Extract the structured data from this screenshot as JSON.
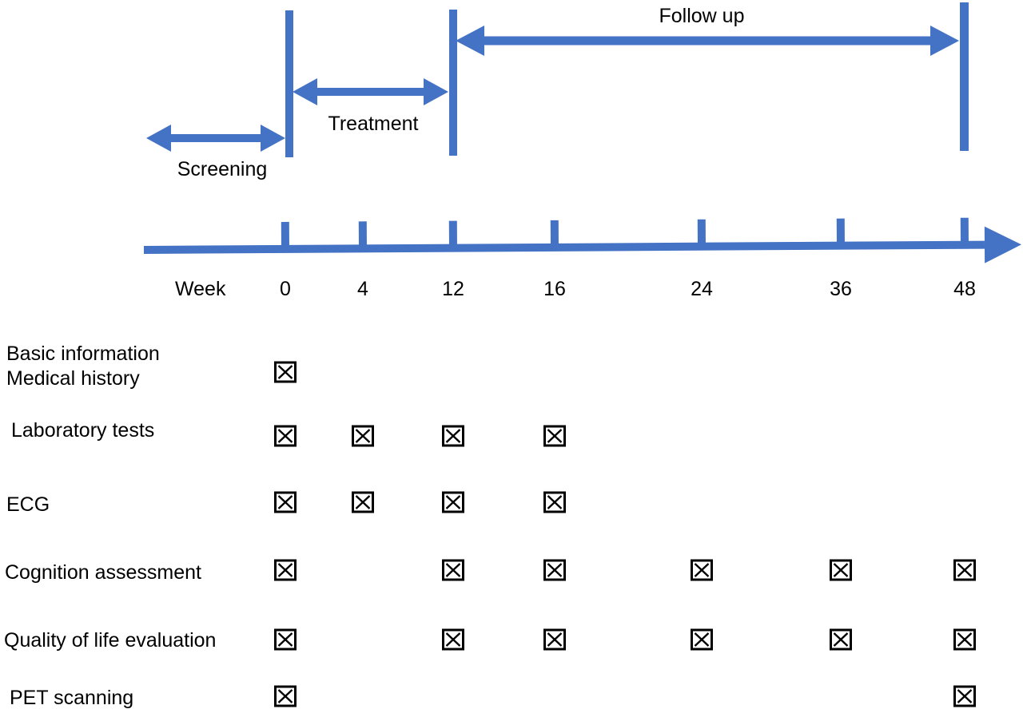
{
  "figure": {
    "type": "clinical-trial-timeline",
    "colors": {
      "accent": "#4472C4",
      "ink": "#000000",
      "background": "#FFFFFF"
    }
  },
  "phases": {
    "screening": {
      "label": "Screening",
      "span": "before week 0"
    },
    "treatment": {
      "label": "Treatment",
      "span": "week 0 to week 12"
    },
    "follow_up": {
      "label": "Follow up",
      "span": "week 12 to week 48"
    }
  },
  "axis": {
    "label": "Week",
    "ticks": [
      "0",
      "4",
      "12",
      "16",
      "24",
      "36",
      "48"
    ]
  },
  "schedule": {
    "checkbox_symbol": "x-in-box",
    "rows": [
      {
        "id": "basic-information-medical-history",
        "label_lines": [
          "Basic information",
          "Medical history"
        ],
        "checked_weeks": [
          "0"
        ]
      },
      {
        "id": "laboratory-tests",
        "label_lines": [
          "Laboratory tests"
        ],
        "checked_weeks": [
          "0",
          "4",
          "12",
          "16"
        ]
      },
      {
        "id": "ecg",
        "label_lines": [
          "ECG"
        ],
        "checked_weeks": [
          "0",
          "4",
          "12",
          "16"
        ]
      },
      {
        "id": "cognition-assessment",
        "label_lines": [
          "Cognition assessment"
        ],
        "checked_weeks": [
          "0",
          "12",
          "16",
          "24",
          "36",
          "48"
        ]
      },
      {
        "id": "quality-of-life-evaluation",
        "label_lines": [
          "Quality of life evaluation"
        ],
        "checked_weeks": [
          "0",
          "12",
          "16",
          "24",
          "36",
          "48"
        ]
      },
      {
        "id": "pet-scanning",
        "label_lines": [
          "PET scanning"
        ],
        "checked_weeks": [
          "0",
          "48"
        ]
      }
    ]
  }
}
